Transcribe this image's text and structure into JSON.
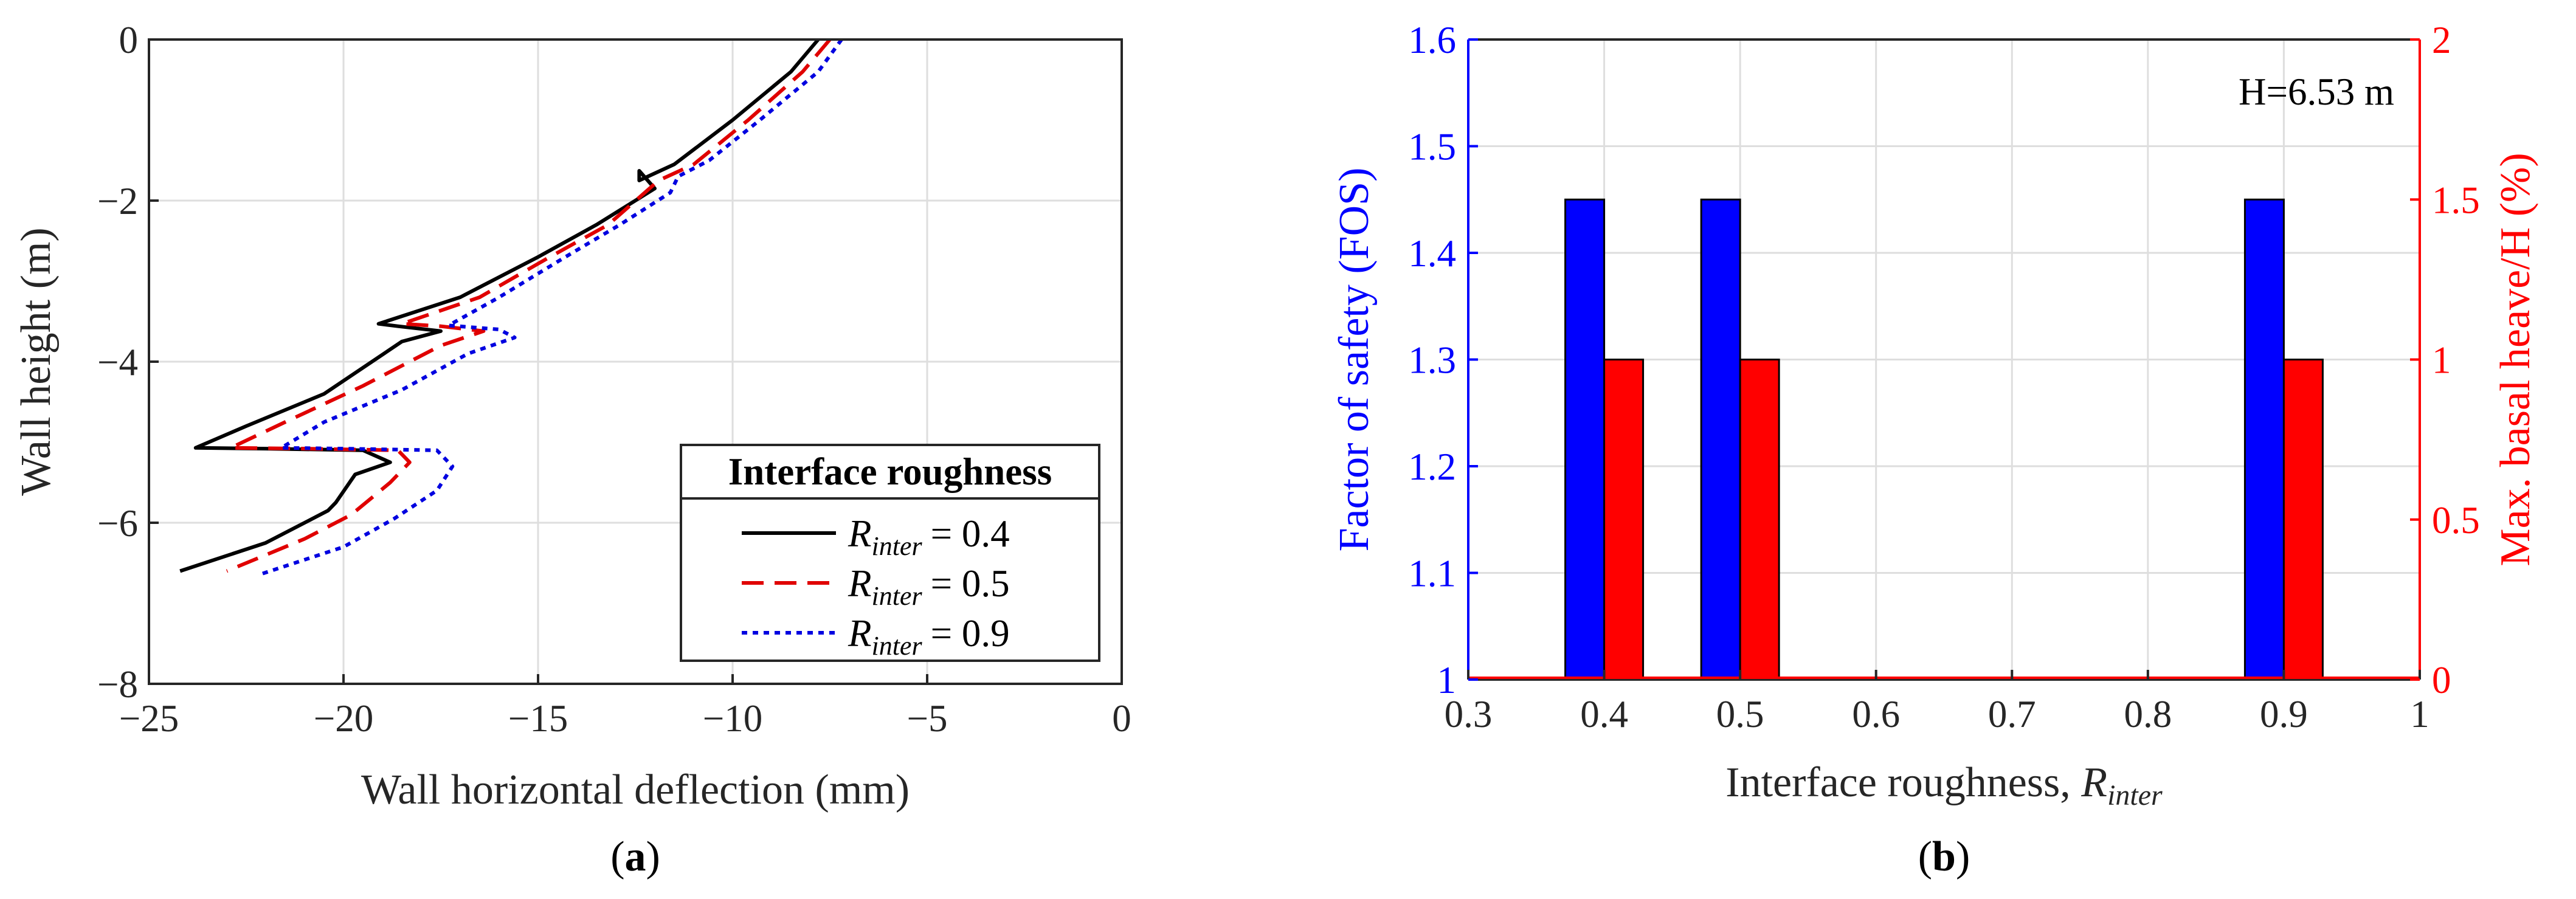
{
  "chart_data": [
    {
      "type": "line",
      "panel_label": "(a)",
      "title": "",
      "xlabel": "Wall horizontal deflection (mm)",
      "ylabel": "Wall height (m)",
      "xlim": [
        -25,
        0
      ],
      "ylim": [
        -8,
        0
      ],
      "grid": true,
      "x_ticks": [
        -25,
        -20,
        -15,
        -10,
        -5,
        0
      ],
      "y_ticks": [
        0,
        -2,
        -4,
        -6,
        -8
      ],
      "x_tick_labels": [
        "−25",
        "−20",
        "−15",
        "−10",
        "−5",
        "0"
      ],
      "y_tick_labels": [
        "0",
        "−2",
        "−4",
        "−6",
        "−8"
      ],
      "legend": {
        "title": "Interface roughness",
        "position": "bottom-right",
        "entries": [
          "R_inter = 0.4",
          "R_inter = 0.5",
          "R_inter = 0.9"
        ]
      },
      "series": [
        {
          "name": "R_inter = 0.4",
          "sub": "inter",
          "value_text": "= 0.4",
          "color": "#000000",
          "style": "solid",
          "points": [
            [
              -7.8,
              0
            ],
            [
              -8.5,
              -0.4
            ],
            [
              -10.0,
              -1.0
            ],
            [
              -11.5,
              -1.55
            ],
            [
              -12.4,
              -1.75
            ],
            [
              -12.4,
              -1.63
            ],
            [
              -12.0,
              -1.85
            ],
            [
              -13.5,
              -2.3
            ],
            [
              -15.0,
              -2.7
            ],
            [
              -17.0,
              -3.2
            ],
            [
              -19.1,
              -3.53
            ],
            [
              -18.6,
              -3.56
            ],
            [
              -17.5,
              -3.62
            ],
            [
              -18.5,
              -3.75
            ],
            [
              -20.5,
              -4.4
            ],
            [
              -22.5,
              -4.8
            ],
            [
              -23.8,
              -5.07
            ],
            [
              -22.0,
              -5.08
            ],
            [
              -19.5,
              -5.1
            ],
            [
              -18.8,
              -5.25
            ],
            [
              -19.7,
              -5.4
            ],
            [
              -20.2,
              -5.75
            ],
            [
              -20.4,
              -5.85
            ],
            [
              -22.0,
              -6.25
            ],
            [
              -24.2,
              -6.6
            ]
          ]
        },
        {
          "name": "R_inter = 0.5",
          "sub": "inter",
          "value_text": "= 0.5",
          "color": "#e00000",
          "style": "dashed",
          "points": [
            [
              -7.5,
              0
            ],
            [
              -8.2,
              -0.4
            ],
            [
              -9.6,
              -1.0
            ],
            [
              -11.0,
              -1.55
            ],
            [
              -11.9,
              -1.75
            ],
            [
              -13.2,
              -2.3
            ],
            [
              -14.7,
              -2.7
            ],
            [
              -16.5,
              -3.2
            ],
            [
              -18.5,
              -3.53
            ],
            [
              -17.5,
              -3.56
            ],
            [
              -16.4,
              -3.62
            ],
            [
              -17.5,
              -3.8
            ],
            [
              -19.5,
              -4.3
            ],
            [
              -21.5,
              -4.75
            ],
            [
              -22.9,
              -5.07
            ],
            [
              -21.0,
              -5.08
            ],
            [
              -18.6,
              -5.1
            ],
            [
              -18.3,
              -5.25
            ],
            [
              -18.8,
              -5.5
            ],
            [
              -19.8,
              -5.9
            ],
            [
              -21.0,
              -6.2
            ],
            [
              -23.0,
              -6.6
            ]
          ]
        },
        {
          "name": "R_inter = 0.9",
          "sub": "inter",
          "value_text": "= 0.9",
          "color": "#0000e0",
          "style": "dotted",
          "points": [
            [
              -7.2,
              0
            ],
            [
              -7.8,
              -0.4
            ],
            [
              -9.3,
              -1.0
            ],
            [
              -10.6,
              -1.5
            ],
            [
              -11.4,
              -1.7
            ],
            [
              -11.6,
              -1.9
            ],
            [
              -12.9,
              -2.3
            ],
            [
              -14.3,
              -2.7
            ],
            [
              -16.0,
              -3.2
            ],
            [
              -17.3,
              -3.55
            ],
            [
              -16.0,
              -3.6
            ],
            [
              -15.6,
              -3.7
            ],
            [
              -16.8,
              -3.9
            ],
            [
              -18.5,
              -4.35
            ],
            [
              -20.5,
              -4.75
            ],
            [
              -21.6,
              -5.07
            ],
            [
              -20.0,
              -5.08
            ],
            [
              -17.6,
              -5.1
            ],
            [
              -17.2,
              -5.3
            ],
            [
              -17.6,
              -5.6
            ],
            [
              -18.7,
              -5.95
            ],
            [
              -20.0,
              -6.3
            ],
            [
              -22.2,
              -6.65
            ]
          ]
        }
      ]
    },
    {
      "type": "bar",
      "panel_label": "(b)",
      "title": "",
      "annotation": "H=6.53 m",
      "xlabel": "Interface roughness, ",
      "xlabel_math": "R",
      "xlabel_sub": "inter",
      "ylabel_left": "Factor of safety (FOS)",
      "ylabel_right": "Max. basal heave/H (%)",
      "xlim": [
        0.3,
        1
      ],
      "ylim_left": [
        1,
        1.6
      ],
      "ylim_right": [
        0,
        2
      ],
      "grid": true,
      "x_ticks": [
        0.3,
        0.4,
        0.5,
        0.6,
        0.7,
        0.8,
        0.9,
        1
      ],
      "x_tick_labels": [
        "0.3",
        "0.4",
        "0.5",
        "0.6",
        "0.7",
        "0.8",
        "0.9",
        "1"
      ],
      "y_ticks_left": [
        1,
        1.1,
        1.2,
        1.3,
        1.4,
        1.5,
        1.6
      ],
      "y_tick_labels_left": [
        "1",
        "1.1",
        "1.2",
        "1.3",
        "1.4",
        "1.5",
        "1.6"
      ],
      "y_ticks_right": [
        0,
        0.5,
        1,
        1.5,
        2
      ],
      "y_tick_labels_right": [
        "0",
        "0.5",
        "1",
        "1.5",
        "2"
      ],
      "categories": [
        0.4,
        0.5,
        0.9
      ],
      "series": [
        {
          "name": "Factor of safety (FOS)",
          "axis": "left",
          "color": "#0000ff",
          "values": [
            1.45,
            1.45,
            1.45
          ]
        },
        {
          "name": "Max. basal heave/H (%)",
          "axis": "right",
          "color": "#ff0000",
          "values": [
            1.0,
            1.0,
            1.0
          ]
        }
      ]
    }
  ]
}
